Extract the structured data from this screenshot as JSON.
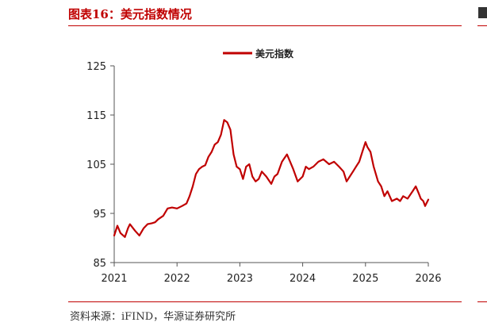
{
  "figure": {
    "title": "图表16：美元指数情况",
    "source": "资料来源：iFIND，华源证券研究所"
  },
  "colors": {
    "series": "#c00000",
    "axis": "#555555",
    "accent": "#c00000"
  },
  "chart_data": {
    "type": "line",
    "title": "",
    "xlabel": "",
    "ylabel": "",
    "legend_position": "top-center",
    "grid": false,
    "ylim": [
      85,
      125
    ],
    "yticks": [
      85,
      95,
      105,
      115,
      125
    ],
    "xlim": [
      2021,
      2026
    ],
    "xticks": [
      "2021",
      "2022",
      "2023",
      "2024",
      "2025",
      "2026"
    ],
    "series": [
      {
        "name": "美元指数",
        "x": [
          2021.0,
          2021.05,
          2021.1,
          2021.17,
          2021.22,
          2021.25,
          2021.33,
          2021.4,
          2021.47,
          2021.53,
          2021.6,
          2021.65,
          2021.7,
          2021.78,
          2021.85,
          2021.92,
          2022.0,
          2022.08,
          2022.15,
          2022.2,
          2022.25,
          2022.3,
          2022.35,
          2022.4,
          2022.45,
          2022.5,
          2022.55,
          2022.6,
          2022.65,
          2022.7,
          2022.75,
          2022.8,
          2022.85,
          2022.9,
          2022.95,
          2023.0,
          2023.05,
          2023.1,
          2023.15,
          2023.2,
          2023.25,
          2023.3,
          2023.35,
          2023.42,
          2023.5,
          2023.55,
          2023.6,
          2023.67,
          2023.75,
          2023.8,
          2023.85,
          2023.92,
          2024.0,
          2024.05,
          2024.1,
          2024.17,
          2024.25,
          2024.33,
          2024.42,
          2024.5,
          2024.58,
          2024.65,
          2024.7,
          2024.75,
          2024.8,
          2024.85,
          2024.9,
          2024.95,
          2025.0,
          2025.03,
          2025.08,
          2025.13,
          2025.2,
          2025.25,
          2025.3,
          2025.35,
          2025.42,
          2025.5,
          2025.55,
          2025.6,
          2025.67,
          2025.75,
          2025.8,
          2025.85,
          2025.88,
          2025.92,
          2025.95,
          2026.0
        ],
        "values": [
          90.5,
          92.5,
          91.0,
          90.2,
          92.0,
          92.8,
          91.5,
          90.5,
          92.0,
          92.8,
          93.0,
          93.2,
          93.8,
          94.5,
          96.0,
          96.2,
          96.0,
          96.5,
          97.0,
          98.5,
          100.5,
          103.0,
          104.0,
          104.5,
          104.8,
          106.5,
          107.5,
          109.0,
          109.5,
          111.0,
          114.0,
          113.5,
          112.0,
          107.0,
          104.5,
          104.0,
          102.0,
          104.5,
          105.0,
          102.5,
          101.5,
          102.0,
          103.5,
          102.5,
          101.0,
          102.5,
          103.0,
          105.5,
          107.0,
          105.5,
          104.0,
          101.5,
          102.5,
          104.5,
          104.0,
          104.5,
          105.5,
          106.0,
          105.0,
          105.5,
          104.5,
          103.5,
          101.5,
          102.5,
          103.5,
          104.5,
          105.5,
          107.5,
          109.5,
          108.5,
          107.5,
          104.5,
          101.5,
          100.5,
          98.5,
          99.5,
          97.5,
          98.0,
          97.5,
          98.5,
          98.0,
          99.5,
          100.5,
          99.0,
          98.0,
          97.5,
          96.5,
          97.8
        ]
      }
    ]
  }
}
